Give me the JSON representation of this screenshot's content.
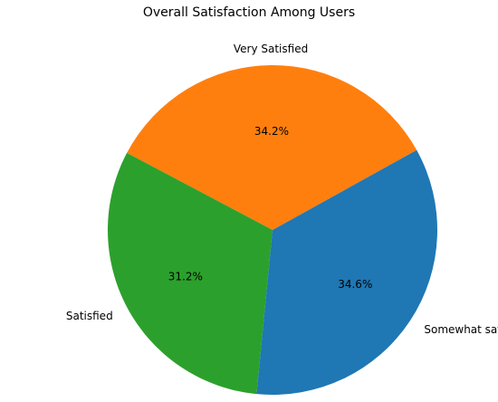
{
  "chart_data": {
    "type": "pie",
    "title": "Overall Satisfaction Among Users",
    "slices": [
      {
        "label": "Very Satisfied",
        "value": 34.2,
        "percent_label": "34.2%",
        "color": "#ff7f0e"
      },
      {
        "label": "Satisfied",
        "value": 31.2,
        "percent_label": "31.2%",
        "color": "#2ca02c"
      },
      {
        "label": "Somewhat satisfied",
        "value": 34.6,
        "percent_label": "34.6%",
        "color": "#1f77b4"
      }
    ]
  }
}
